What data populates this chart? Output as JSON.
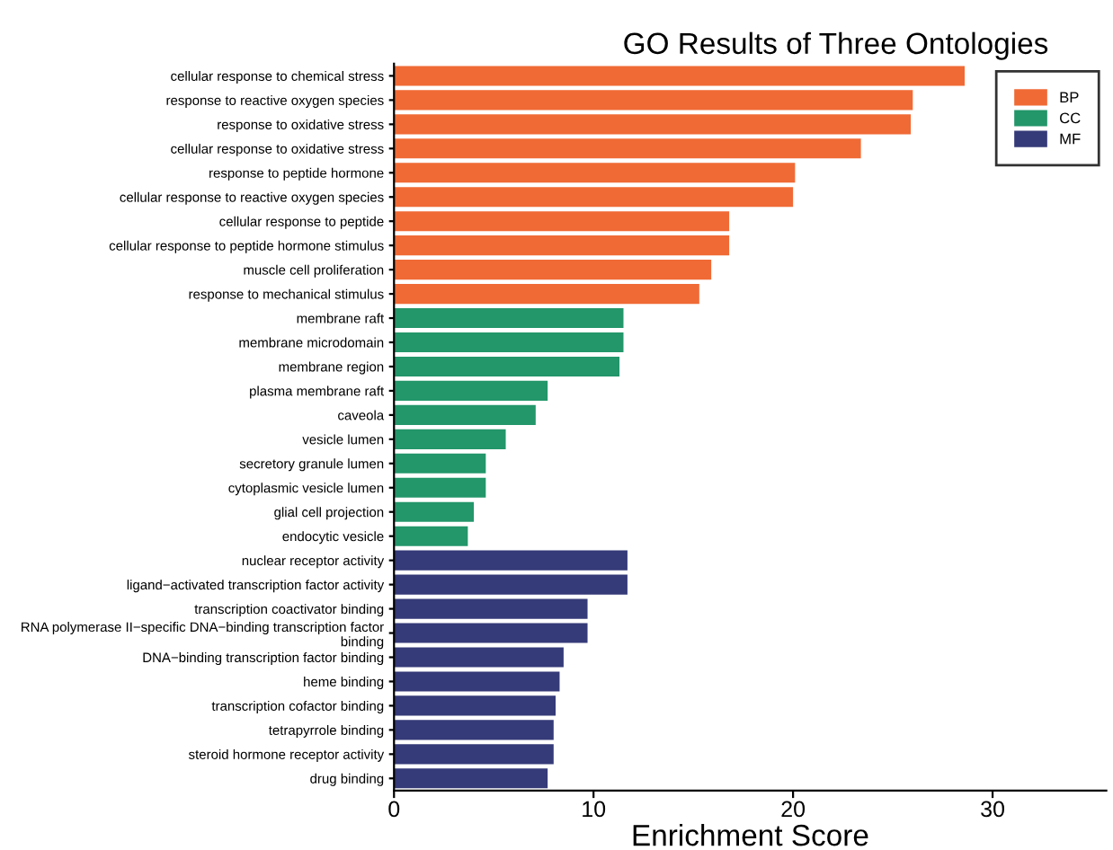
{
  "chart_data": {
    "type": "bar",
    "orientation": "horizontal",
    "title": "GO Results of Three Ontologies",
    "xlabel": "Enrichment Score",
    "categories": [
      "cellular response to chemical stress",
      "response to reactive oxygen species",
      "response to oxidative stress",
      "cellular response to oxidative stress",
      "response to peptide hormone",
      "cellular response to reactive oxygen species",
      "cellular response to peptide",
      "cellular response to peptide hormone stimulus",
      "muscle cell proliferation",
      "response to mechanical stimulus",
      "membrane raft",
      "membrane microdomain",
      "membrane region",
      "plasma membrane raft",
      "caveola",
      "vesicle lumen",
      "secretory granule lumen",
      "cytoplasmic vesicle lumen",
      "glial cell projection",
      "endocytic vesicle",
      "nuclear receptor activity",
      "ligand−activated transcription factor activity",
      "transcription coactivator binding",
      "RNA polymerase II−specific DNA−binding transcription factor\nbinding",
      "DNA−binding transcription factor binding",
      "heme binding",
      "transcription cofactor binding",
      "tetrapyrrole binding",
      "steroid hormone receptor activity",
      "drug binding"
    ],
    "series": [
      {
        "name": "BP",
        "color": "#f06a35",
        "values": [
          28.6,
          26.0,
          25.9,
          23.4,
          20.1,
          20.0,
          16.8,
          16.8,
          15.9,
          15.3,
          null,
          null,
          null,
          null,
          null,
          null,
          null,
          null,
          null,
          null,
          null,
          null,
          null,
          null,
          null,
          null,
          null,
          null,
          null,
          null
        ]
      },
      {
        "name": "CC",
        "color": "#23966a",
        "values": [
          null,
          null,
          null,
          null,
          null,
          null,
          null,
          null,
          null,
          null,
          11.5,
          11.5,
          11.3,
          7.7,
          7.1,
          5.6,
          4.6,
          4.6,
          4.0,
          3.7,
          null,
          null,
          null,
          null,
          null,
          null,
          null,
          null,
          null,
          null
        ]
      },
      {
        "name": "MF",
        "color": "#353a78",
        "values": [
          null,
          null,
          null,
          null,
          null,
          null,
          null,
          null,
          null,
          null,
          null,
          null,
          null,
          null,
          null,
          null,
          null,
          null,
          null,
          null,
          11.7,
          11.7,
          9.7,
          9.7,
          8.5,
          8.3,
          8.1,
          8.0,
          8.0,
          7.7
        ]
      }
    ],
    "xlim": [
      0,
      35.7
    ],
    "xticks": [
      0,
      10,
      20,
      30
    ],
    "grid": false,
    "legend": "top right"
  }
}
